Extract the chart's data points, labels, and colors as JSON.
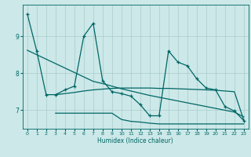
{
  "xlabel": "Humidex (Indice chaleur)",
  "xlim": [
    -0.5,
    23.5
  ],
  "ylim": [
    6.5,
    9.85
  ],
  "yticks": [
    7,
    8,
    9
  ],
  "xticks": [
    0,
    1,
    2,
    3,
    4,
    5,
    6,
    7,
    8,
    9,
    10,
    11,
    12,
    13,
    14,
    15,
    16,
    17,
    18,
    19,
    20,
    21,
    22,
    23
  ],
  "bg_color": "#cce8e8",
  "line_color": "#006666",
  "grid_color": "#aacccc",
  "line1_x": [
    0,
    1,
    2,
    3,
    4,
    5,
    6,
    7,
    8,
    9,
    10,
    11,
    12,
    13,
    14,
    15,
    16,
    17,
    18,
    19,
    20,
    21,
    22,
    23
  ],
  "line1_y": [
    9.6,
    8.6,
    7.42,
    7.42,
    7.55,
    7.65,
    9.0,
    9.35,
    7.8,
    7.5,
    7.45,
    7.38,
    7.15,
    6.85,
    6.85,
    8.6,
    8.3,
    8.2,
    7.85,
    7.6,
    7.55,
    7.1,
    6.98,
    6.72
  ],
  "line2_x": [
    0,
    1,
    2,
    3,
    4,
    5,
    6,
    7,
    8,
    9,
    10,
    11,
    12,
    13,
    14,
    15,
    16,
    17,
    18,
    19,
    20,
    21,
    22,
    23
  ],
  "line2_y": [
    8.62,
    8.5,
    8.38,
    8.26,
    8.14,
    8.02,
    7.9,
    7.78,
    7.72,
    7.65,
    7.58,
    7.52,
    7.46,
    7.4,
    7.35,
    7.3,
    7.25,
    7.2,
    7.15,
    7.1,
    7.05,
    7.0,
    6.95,
    6.82
  ],
  "line3_x": [
    3,
    4,
    5,
    6,
    7,
    8,
    9,
    10,
    11,
    12,
    13,
    14,
    15,
    16,
    17,
    18,
    19,
    20,
    21,
    22,
    23
  ],
  "line3_y": [
    7.42,
    7.45,
    7.48,
    7.52,
    7.55,
    7.57,
    7.59,
    7.6,
    7.6,
    7.6,
    7.6,
    7.59,
    7.59,
    7.58,
    7.57,
    7.56,
    7.55,
    7.54,
    7.52,
    7.5,
    6.73
  ],
  "line4_x": [
    3,
    4,
    5,
    6,
    7,
    8,
    9,
    10,
    11,
    12,
    13,
    14,
    15,
    16,
    17,
    18,
    19,
    20,
    21,
    22,
    23
  ],
  "line4_y": [
    6.92,
    6.92,
    6.92,
    6.92,
    6.92,
    6.92,
    6.92,
    6.75,
    6.7,
    6.68,
    6.65,
    6.63,
    6.63,
    6.63,
    6.63,
    6.63,
    6.63,
    6.63,
    6.63,
    6.63,
    6.63
  ]
}
